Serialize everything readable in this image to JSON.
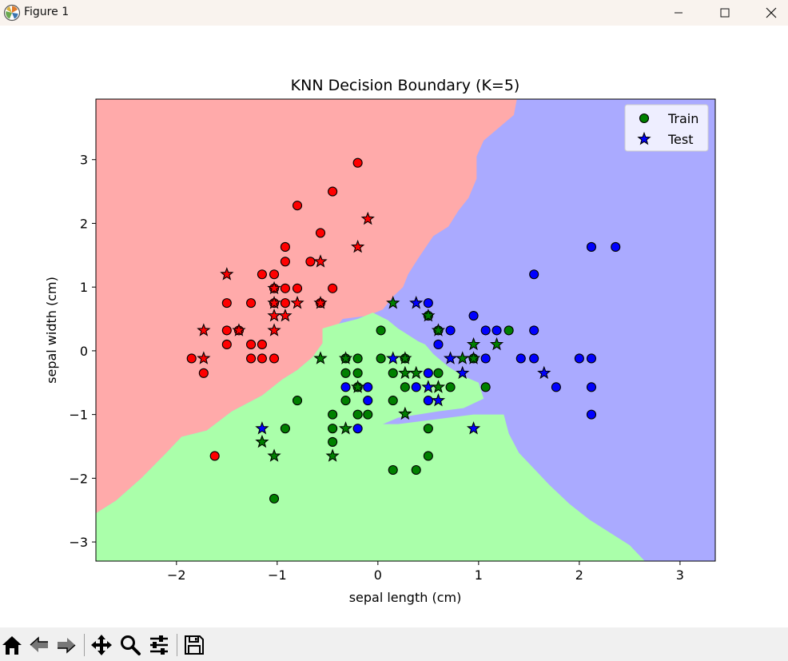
{
  "window": {
    "title": "Figure 1"
  },
  "icons": {
    "app": "matplotlib-icon",
    "minimize": "minimize-icon",
    "maximize": "maximize-icon",
    "close": "close-icon"
  },
  "toolbar": {
    "buttons": [
      {
        "name": "home-icon",
        "tooltip": "Home"
      },
      {
        "name": "back-icon",
        "tooltip": "Back"
      },
      {
        "name": "forward-icon",
        "tooltip": "Forward"
      },
      {
        "name": "pan-icon",
        "tooltip": "Pan"
      },
      {
        "name": "zoom-icon",
        "tooltip": "Zoom"
      },
      {
        "name": "configure-subplots-icon",
        "tooltip": "Configure subplots"
      },
      {
        "name": "save-icon",
        "tooltip": "Save"
      }
    ]
  },
  "chart_data": {
    "type": "scatter",
    "title": "KNN Decision Boundary (K=5)",
    "xlabel": "sepal length (cm)",
    "ylabel": "sepal width (cm)",
    "xlim": [
      -2.8,
      3.35
    ],
    "ylim": [
      -3.3,
      3.95
    ],
    "xticks": [
      -2,
      -1,
      0,
      1,
      2,
      3
    ],
    "yticks": [
      -3,
      -2,
      -1,
      0,
      1,
      2,
      3
    ],
    "legend": {
      "placement": "top-right",
      "entries": [
        {
          "label": "Train",
          "marker": "circle"
        },
        {
          "label": "Test",
          "marker": "star"
        }
      ]
    },
    "regions": {
      "colors": {
        "0": "#ffaaaa",
        "1": "#aaffaa",
        "2": "#aaaaff"
      },
      "background": 2,
      "polygons": [
        {
          "class": 0,
          "points": [
            [
              -2.8,
              3.95
            ],
            [
              1.38,
              3.95
            ],
            [
              1.35,
              3.7
            ],
            [
              1.2,
              3.5
            ],
            [
              1.05,
              3.3
            ],
            [
              0.98,
              3.05
            ],
            [
              0.98,
              2.7
            ],
            [
              0.9,
              2.4
            ],
            [
              0.8,
              2.2
            ],
            [
              0.7,
              1.95
            ],
            [
              0.55,
              1.8
            ],
            [
              0.4,
              1.45
            ],
            [
              0.3,
              1.2
            ],
            [
              0.25,
              1.0
            ],
            [
              0.15,
              0.85
            ],
            [
              0.05,
              0.65
            ],
            [
              -0.1,
              0.55
            ],
            [
              -0.35,
              0.5
            ],
            [
              -0.45,
              0.3
            ],
            [
              -0.55,
              0.12
            ],
            [
              -0.65,
              -0.1
            ],
            [
              -0.8,
              -0.3
            ],
            [
              -0.95,
              -0.45
            ],
            [
              -1.15,
              -0.7
            ],
            [
              -1.45,
              -0.95
            ],
            [
              -1.7,
              -1.25
            ],
            [
              -1.95,
              -1.35
            ],
            [
              -2.1,
              -1.6
            ],
            [
              -2.35,
              -2.0
            ],
            [
              -2.6,
              -2.35
            ],
            [
              -2.8,
              -2.55
            ]
          ]
        },
        {
          "class": 1,
          "points": [
            [
              -2.8,
              -2.55
            ],
            [
              -2.6,
              -2.35
            ],
            [
              -2.35,
              -2.0
            ],
            [
              -2.1,
              -1.6
            ],
            [
              -1.95,
              -1.35
            ],
            [
              -1.7,
              -1.25
            ],
            [
              -1.45,
              -0.95
            ],
            [
              -1.15,
              -0.7
            ],
            [
              -0.95,
              -0.45
            ],
            [
              -0.8,
              -0.3
            ],
            [
              -0.65,
              -0.1
            ],
            [
              -0.55,
              0.12
            ],
            [
              -0.55,
              0.35
            ],
            [
              -0.4,
              0.42
            ],
            [
              -0.2,
              0.5
            ],
            [
              -0.05,
              0.6
            ],
            [
              0.1,
              0.48
            ],
            [
              0.2,
              0.35
            ],
            [
              0.3,
              0.25
            ],
            [
              0.4,
              0.15
            ],
            [
              0.47,
              0.1
            ],
            [
              0.55,
              -0.05
            ],
            [
              0.7,
              -0.25
            ],
            [
              0.85,
              -0.4
            ],
            [
              1.0,
              -0.5
            ],
            [
              1.05,
              -0.75
            ],
            [
              0.85,
              -0.9
            ],
            [
              0.6,
              -0.95
            ],
            [
              0.4,
              -1.0
            ],
            [
              0.2,
              -1.05
            ],
            [
              0.05,
              -1.15
            ],
            [
              0.2,
              -1.15
            ],
            [
              0.45,
              -1.1
            ],
            [
              0.7,
              -1.05
            ],
            [
              0.95,
              -1.0
            ],
            [
              1.25,
              -1.0
            ],
            [
              1.3,
              -1.3
            ],
            [
              1.4,
              -1.6
            ],
            [
              1.55,
              -1.85
            ],
            [
              1.7,
              -2.1
            ],
            [
              1.9,
              -2.4
            ],
            [
              2.1,
              -2.65
            ],
            [
              2.3,
              -2.85
            ],
            [
              2.5,
              -3.05
            ],
            [
              2.65,
              -3.3
            ],
            [
              -2.8,
              -3.3
            ]
          ]
        }
      ]
    },
    "train": [
      {
        "x": -0.2,
        "y": 2.95,
        "c": 0
      },
      {
        "x": -0.45,
        "y": 2.5,
        "c": 0
      },
      {
        "x": -0.8,
        "y": 2.28,
        "c": 0
      },
      {
        "x": -0.57,
        "y": 1.85,
        "c": 0
      },
      {
        "x": -0.92,
        "y": 1.63,
        "c": 0
      },
      {
        "x": -1.15,
        "y": 1.2,
        "c": 0
      },
      {
        "x": -1.03,
        "y": 1.2,
        "c": 0
      },
      {
        "x": -0.92,
        "y": 1.4,
        "c": 0
      },
      {
        "x": -0.67,
        "y": 1.4,
        "c": 0
      },
      {
        "x": -1.03,
        "y": 0.98,
        "c": 0
      },
      {
        "x": -0.92,
        "y": 0.98,
        "c": 0
      },
      {
        "x": -0.8,
        "y": 0.98,
        "c": 0
      },
      {
        "x": -0.45,
        "y": 0.98,
        "c": 0
      },
      {
        "x": -1.5,
        "y": 0.75,
        "c": 0
      },
      {
        "x": -1.26,
        "y": 0.75,
        "c": 0
      },
      {
        "x": -1.03,
        "y": 0.75,
        "c": 0
      },
      {
        "x": -0.92,
        "y": 0.75,
        "c": 0
      },
      {
        "x": -0.57,
        "y": 0.75,
        "c": 0
      },
      {
        "x": -1.5,
        "y": 0.32,
        "c": 0
      },
      {
        "x": -1.38,
        "y": 0.32,
        "c": 0
      },
      {
        "x": -1.5,
        "y": 0.1,
        "c": 0
      },
      {
        "x": -1.26,
        "y": 0.1,
        "c": 0
      },
      {
        "x": -1.15,
        "y": 0.1,
        "c": 0
      },
      {
        "x": -1.85,
        "y": -0.12,
        "c": 0
      },
      {
        "x": -1.26,
        "y": -0.12,
        "c": 0
      },
      {
        "x": -1.15,
        "y": -0.12,
        "c": 0
      },
      {
        "x": -1.03,
        "y": -0.12,
        "c": 0
      },
      {
        "x": -1.73,
        "y": -0.35,
        "c": 0
      },
      {
        "x": -1.62,
        "y": -1.65,
        "c": 0
      },
      {
        "x": 0.03,
        "y": 0.32,
        "c": 1
      },
      {
        "x": 0.5,
        "y": 0.55,
        "c": 1
      },
      {
        "x": 0.6,
        "y": 0.32,
        "c": 1
      },
      {
        "x": 1.3,
        "y": 0.32,
        "c": 1
      },
      {
        "x": -0.32,
        "y": -0.12,
        "c": 1
      },
      {
        "x": -0.2,
        "y": -0.12,
        "c": 1
      },
      {
        "x": 0.03,
        "y": -0.12,
        "c": 1
      },
      {
        "x": 0.27,
        "y": -0.12,
        "c": 1
      },
      {
        "x": 0.95,
        "y": -0.12,
        "c": 1
      },
      {
        "x": -0.32,
        "y": -0.35,
        "c": 1
      },
      {
        "x": -0.2,
        "y": -0.35,
        "c": 1
      },
      {
        "x": 0.15,
        "y": -0.35,
        "c": 1
      },
      {
        "x": 0.6,
        "y": -0.35,
        "c": 1
      },
      {
        "x": -0.2,
        "y": -0.57,
        "c": 1
      },
      {
        "x": 0.27,
        "y": -0.57,
        "c": 1
      },
      {
        "x": 0.72,
        "y": -0.57,
        "c": 1
      },
      {
        "x": 1.07,
        "y": -0.57,
        "c": 1
      },
      {
        "x": -0.8,
        "y": -0.78,
        "c": 1
      },
      {
        "x": -0.32,
        "y": -0.78,
        "c": 1
      },
      {
        "x": 0.15,
        "y": -0.78,
        "c": 1
      },
      {
        "x": -0.45,
        "y": -1.0,
        "c": 1
      },
      {
        "x": -0.2,
        "y": -1.0,
        "c": 1
      },
      {
        "x": -0.1,
        "y": -1.0,
        "c": 1
      },
      {
        "x": -0.92,
        "y": -1.22,
        "c": 1
      },
      {
        "x": -0.45,
        "y": -1.22,
        "c": 1
      },
      {
        "x": 0.5,
        "y": -1.22,
        "c": 1
      },
      {
        "x": -0.45,
        "y": -1.43,
        "c": 1
      },
      {
        "x": 0.5,
        "y": -1.65,
        "c": 1
      },
      {
        "x": 0.15,
        "y": -1.87,
        "c": 1
      },
      {
        "x": 0.38,
        "y": -1.87,
        "c": 1
      },
      {
        "x": -1.03,
        "y": -2.32,
        "c": 1
      },
      {
        "x": 2.12,
        "y": 1.63,
        "c": 2
      },
      {
        "x": 2.36,
        "y": 1.63,
        "c": 2
      },
      {
        "x": 1.55,
        "y": 1.2,
        "c": 2
      },
      {
        "x": 0.5,
        "y": 0.75,
        "c": 2
      },
      {
        "x": 0.95,
        "y": 0.55,
        "c": 2
      },
      {
        "x": 0.72,
        "y": 0.32,
        "c": 2
      },
      {
        "x": 1.07,
        "y": 0.32,
        "c": 2
      },
      {
        "x": 1.18,
        "y": 0.32,
        "c": 2
      },
      {
        "x": 1.55,
        "y": 0.32,
        "c": 2
      },
      {
        "x": 0.6,
        "y": 0.1,
        "c": 2
      },
      {
        "x": 1.07,
        "y": -0.12,
        "c": 2
      },
      {
        "x": 1.42,
        "y": -0.12,
        "c": 2
      },
      {
        "x": 1.55,
        "y": -0.12,
        "c": 2
      },
      {
        "x": 2.0,
        "y": -0.12,
        "c": 2
      },
      {
        "x": 2.12,
        "y": -0.12,
        "c": 2
      },
      {
        "x": 0.5,
        "y": -0.35,
        "c": 2
      },
      {
        "x": -0.32,
        "y": -0.57,
        "c": 2
      },
      {
        "x": -0.1,
        "y": -0.57,
        "c": 2
      },
      {
        "x": 0.38,
        "y": -0.57,
        "c": 2
      },
      {
        "x": 1.77,
        "y": -0.57,
        "c": 2
      },
      {
        "x": 2.12,
        "y": -0.57,
        "c": 2
      },
      {
        "x": -0.1,
        "y": -0.78,
        "c": 2
      },
      {
        "x": 0.5,
        "y": -0.78,
        "c": 2
      },
      {
        "x": 2.12,
        "y": -1.0,
        "c": 2
      },
      {
        "x": -0.2,
        "y": -1.22,
        "c": 2
      }
    ],
    "test": [
      {
        "x": -0.1,
        "y": 2.07,
        "c": 0
      },
      {
        "x": -0.2,
        "y": 1.63,
        "c": 0
      },
      {
        "x": -0.57,
        "y": 1.4,
        "c": 0
      },
      {
        "x": -1.5,
        "y": 1.2,
        "c": 0
      },
      {
        "x": -1.03,
        "y": 0.98,
        "c": 0
      },
      {
        "x": -1.03,
        "y": 0.75,
        "c": 0
      },
      {
        "x": -0.8,
        "y": 0.75,
        "c": 0
      },
      {
        "x": -0.57,
        "y": 0.75,
        "c": 0
      },
      {
        "x": -1.03,
        "y": 0.55,
        "c": 0
      },
      {
        "x": -0.92,
        "y": 0.55,
        "c": 0
      },
      {
        "x": -1.73,
        "y": 0.32,
        "c": 0
      },
      {
        "x": -1.38,
        "y": 0.32,
        "c": 0
      },
      {
        "x": -1.03,
        "y": 0.32,
        "c": 0
      },
      {
        "x": -1.73,
        "y": -0.12,
        "c": 0
      },
      {
        "x": 0.15,
        "y": 0.75,
        "c": 1
      },
      {
        "x": 0.5,
        "y": 0.55,
        "c": 1
      },
      {
        "x": 0.6,
        "y": 0.32,
        "c": 1
      },
      {
        "x": 0.95,
        "y": 0.1,
        "c": 1
      },
      {
        "x": 1.18,
        "y": 0.1,
        "c": 1
      },
      {
        "x": -0.57,
        "y": -0.12,
        "c": 1
      },
      {
        "x": -0.32,
        "y": -0.12,
        "c": 1
      },
      {
        "x": 0.27,
        "y": -0.12,
        "c": 1
      },
      {
        "x": 0.84,
        "y": -0.12,
        "c": 1
      },
      {
        "x": 0.95,
        "y": -0.12,
        "c": 1
      },
      {
        "x": 0.27,
        "y": -0.35,
        "c": 1
      },
      {
        "x": 0.38,
        "y": -0.35,
        "c": 1
      },
      {
        "x": -0.2,
        "y": -0.57,
        "c": 1
      },
      {
        "x": 0.6,
        "y": -0.57,
        "c": 1
      },
      {
        "x": 0.27,
        "y": -0.99,
        "c": 1
      },
      {
        "x": -0.32,
        "y": -1.22,
        "c": 1
      },
      {
        "x": -1.15,
        "y": -1.43,
        "c": 1
      },
      {
        "x": -1.03,
        "y": -1.65,
        "c": 1
      },
      {
        "x": -0.45,
        "y": -1.65,
        "c": 1
      },
      {
        "x": 0.38,
        "y": 0.75,
        "c": 2
      },
      {
        "x": 0.15,
        "y": -0.12,
        "c": 2
      },
      {
        "x": 0.72,
        "y": -0.12,
        "c": 2
      },
      {
        "x": 1.65,
        "y": -0.35,
        "c": 2
      },
      {
        "x": 0.84,
        "y": -0.35,
        "c": 2
      },
      {
        "x": 0.5,
        "y": -0.57,
        "c": 2
      },
      {
        "x": 0.6,
        "y": -0.78,
        "c": 2
      },
      {
        "x": 0.95,
        "y": -1.22,
        "c": 2
      },
      {
        "x": -1.15,
        "y": -1.22,
        "c": 2
      }
    ],
    "point_colors": {
      "0": "#ff0000",
      "1": "#008000",
      "2": "#0000ff"
    }
  }
}
